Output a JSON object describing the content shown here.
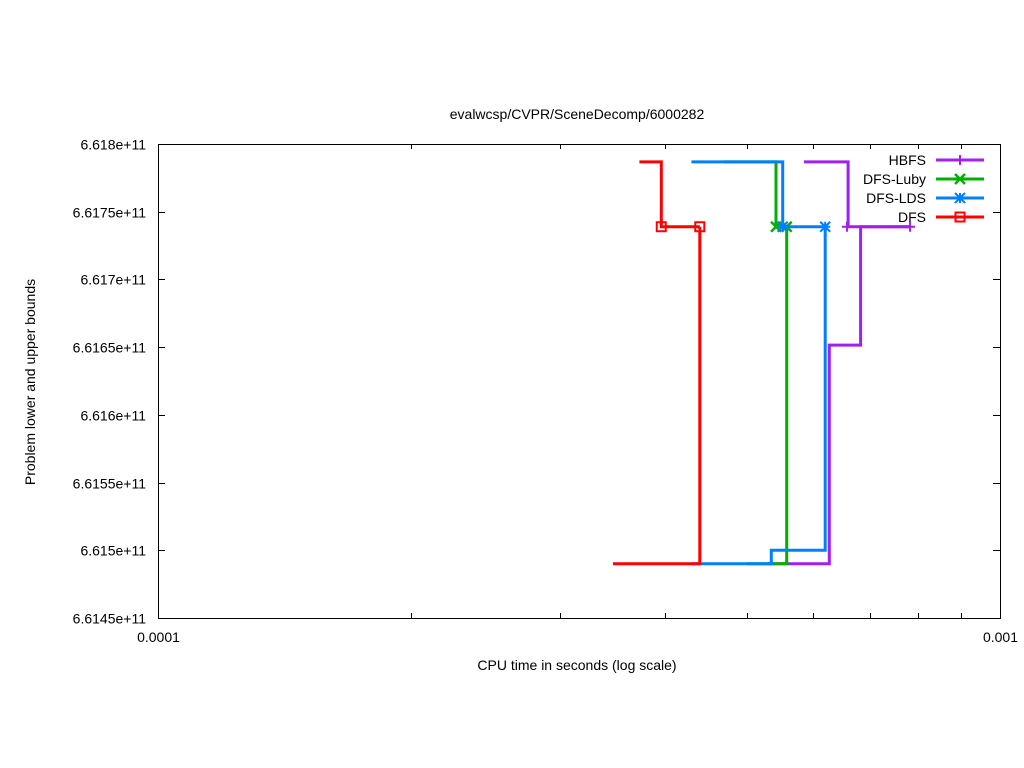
{
  "chart_data": {
    "type": "line",
    "title": "evalwcsp/CVPR/SceneDecomp/6000282",
    "xlabel": "CPU time in seconds (log scale)",
    "ylabel": "Problem lower and upper bounds",
    "xscale": "log",
    "xlim": [
      0.0001,
      0.001
    ],
    "ylim": [
      661450000000,
      661800000000
    ],
    "x_ticks": [
      {
        "value": 0.0001,
        "label": "0.0001"
      },
      {
        "value": 0.001,
        "label": "0.001"
      }
    ],
    "y_ticks": [
      {
        "value": 661450000000,
        "label": "6.6145e+11"
      },
      {
        "value": 661500000000,
        "label": "6.615e+11"
      },
      {
        "value": 661550000000,
        "label": "6.6155e+11"
      },
      {
        "value": 661600000000,
        "label": "6.616e+11"
      },
      {
        "value": 661650000000,
        "label": "6.6165e+11"
      },
      {
        "value": 661700000000,
        "label": "6.617e+11"
      },
      {
        "value": 661750000000,
        "label": "6.6175e+11"
      },
      {
        "value": 661800000000,
        "label": "6.618e+11"
      }
    ],
    "grid": false,
    "legend_position": "top-right",
    "series": [
      {
        "name": "HBFS",
        "color": "#a020f0",
        "marker": "plus",
        "upper": [
          [
            0.000585,
            661786800000
          ],
          [
            0.00066,
            661786800000
          ],
          [
            0.00066,
            661738900000
          ],
          [
            0.000782,
            661738900000
          ]
        ],
        "lower": [
          [
            0.00053,
            661490000000
          ],
          [
            0.000627,
            661490000000
          ],
          [
            0.000627,
            661651500000
          ],
          [
            0.000683,
            661651500000
          ],
          [
            0.000683,
            661738900000
          ],
          [
            0.000782,
            661738900000
          ]
        ],
        "markers": [
          [
            0.000658,
            661738900000
          ],
          [
            0.000782,
            661738900000
          ]
        ]
      },
      {
        "name": "DFS-Luby",
        "color": "#00b000",
        "marker": "x",
        "upper": [
          [
            0.00047,
            661786800000
          ],
          [
            0.000542,
            661786800000
          ],
          [
            0.000542,
            661738900000
          ],
          [
            0.000558,
            661738900000
          ]
        ],
        "lower": [
          [
            0.0005,
            661490000000
          ],
          [
            0.000558,
            661490000000
          ],
          [
            0.000558,
            661738900000
          ]
        ],
        "markers": [
          [
            0.000542,
            661738900000
          ],
          [
            0.000558,
            661738900000
          ]
        ]
      },
      {
        "name": "DFS-LDS",
        "color": "#0080ff",
        "marker": "star",
        "upper": [
          [
            0.00043,
            661786800000
          ],
          [
            0.000552,
            661786800000
          ],
          [
            0.000552,
            661738900000
          ],
          [
            0.00062,
            661738900000
          ]
        ],
        "lower": [
          [
            0.00043,
            661490000000
          ],
          [
            0.000535,
            661490000000
          ],
          [
            0.000535,
            661500000000
          ],
          [
            0.00062,
            661500000000
          ],
          [
            0.00062,
            661738900000
          ]
        ],
        "markers": [
          [
            0.000552,
            661738900000
          ],
          [
            0.00062,
            661738900000
          ]
        ]
      },
      {
        "name": "DFS",
        "color": "#ff0000",
        "marker": "square",
        "upper": [
          [
            0.000373,
            661786800000
          ],
          [
            0.000396,
            661786800000
          ],
          [
            0.000396,
            661738900000
          ],
          [
            0.00044,
            661738900000
          ]
        ],
        "lower": [
          [
            0.000347,
            661490000000
          ],
          [
            0.00044,
            661490000000
          ],
          [
            0.00044,
            661738900000
          ]
        ],
        "markers": [
          [
            0.000396,
            661738900000
          ],
          [
            0.00044,
            661738900000
          ]
        ]
      }
    ]
  }
}
